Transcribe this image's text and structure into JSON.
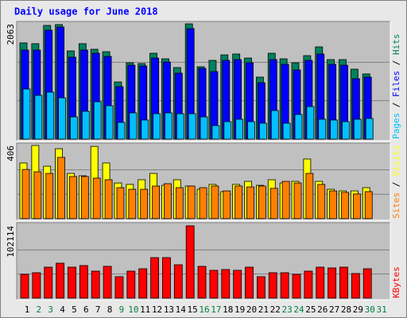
{
  "title": "Daily usage for June 2018",
  "legend_separator": " / ",
  "chart_data": [
    {
      "type": "bar",
      "ylim": [
        0,
        2063
      ],
      "yticks": [
        2063
      ],
      "series": [
        {
          "name": "Hits",
          "color": "#008060",
          "values": [
            1722,
            1708,
            2035,
            2050,
            1579,
            1708,
            1608,
            1565,
            1024,
            1366,
            1352,
            1537,
            1437,
            1281,
            2063,
            1295,
            1409,
            1508,
            1523,
            1451,
            1110,
            1537,
            1437,
            1366,
            1494,
            1651,
            1423,
            1423,
            1252,
            1167,
            null
          ]
        },
        {
          "name": "Files",
          "color": "#0000ff",
          "values": [
            1594,
            1594,
            1950,
            2006,
            1466,
            1594,
            1537,
            1480,
            939,
            1323,
            1309,
            1451,
            1380,
            1181,
            1978,
            1266,
            1209,
            1409,
            1423,
            1366,
            1010,
            1423,
            1338,
            1238,
            1409,
            1523,
            1338,
            1323,
            1081,
            1110,
            null
          ]
        },
        {
          "name": "Pages",
          "color": "#00c0ff",
          "values": [
            897,
            783,
            840,
            740,
            398,
            498,
            669,
            598,
            299,
            470,
            342,
            455,
            470,
            455,
            455,
            398,
            242,
            313,
            356,
            313,
            285,
            512,
            285,
            441,
            583,
            356,
            342,
            313,
            356,
            370,
            null
          ]
        }
      ]
    },
    {
      "type": "bar",
      "ylim": [
        0,
        406
      ],
      "yticks": [
        406
      ],
      "series": [
        {
          "name": "Visits",
          "color": "#ffff00",
          "values": [
            309,
            406,
            291,
            388,
            251,
            238,
            401,
            309,
            198,
            190,
            216,
            251,
            185,
            216,
            181,
            163,
            190,
            150,
            190,
            207,
            185,
            216,
            198,
            207,
            331,
            207,
            163,
            154,
            154,
            172,
            null
          ]
        },
        {
          "name": "Sites",
          "color": "#ff8000",
          "values": [
            273,
            260,
            251,
            340,
            234,
            234,
            225,
            216,
            172,
            163,
            163,
            181,
            194,
            172,
            181,
            172,
            181,
            154,
            181,
            176,
            181,
            168,
            207,
            198,
            251,
            190,
            154,
            146,
            137,
            150,
            null
          ]
        }
      ]
    },
    {
      "type": "bar",
      "ylim": [
        0,
        102114
      ],
      "yticks": [
        102114
      ],
      "categories": [
        "1",
        "2",
        "3",
        "4",
        "5",
        "6",
        "7",
        "8",
        "9",
        "10",
        "11",
        "12",
        "13",
        "14",
        "15",
        "16",
        "17",
        "18",
        "19",
        "20",
        "21",
        "22",
        "23",
        "24",
        "25",
        "26",
        "27",
        "28",
        "29",
        "30",
        "31"
      ],
      "category_colors": [
        "#000000",
        "#008040",
        "#008040",
        "#000000",
        "#000000",
        "#000000",
        "#000000",
        "#000000",
        "#008040",
        "#008040",
        "#000000",
        "#000000",
        "#000000",
        "#000000",
        "#000000",
        "#008040",
        "#008040",
        "#000000",
        "#000000",
        "#000000",
        "#000000",
        "#000000",
        "#008040",
        "#008040",
        "#000000",
        "#000000",
        "#000000",
        "#000000",
        "#000000",
        "#008040",
        "#008040"
      ],
      "series": [
        {
          "name": "KBytes",
          "color": "#ff0000",
          "values": [
            33660,
            35904,
            43758,
            49368,
            43758,
            46002,
            38148,
            44880,
            30294,
            38148,
            41514,
            57222,
            57222,
            47124,
            102114,
            44880,
            39270,
            40392,
            39270,
            43758,
            30294,
            35904,
            35904,
            33660,
            38148,
            43758,
            42636,
            43758,
            34782,
            41514,
            null
          ]
        }
      ]
    }
  ]
}
